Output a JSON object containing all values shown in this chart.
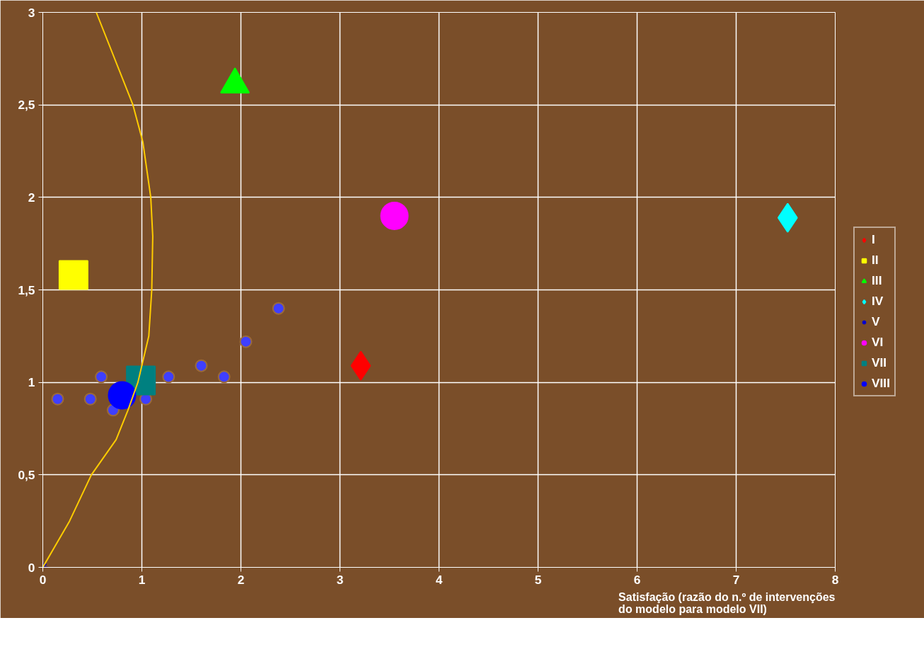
{
  "chart_data": {
    "type": "scatter",
    "xlabel": "Satisfação (razão do n.º de intervenções\ndo modelo para modelo VII)",
    "xlim": [
      0,
      8
    ],
    "xticks": [
      0,
      1,
      2,
      3,
      4,
      5,
      6,
      7,
      8
    ],
    "ylim": [
      0,
      3
    ],
    "yticks": [
      0,
      {
        "value": 0.5,
        "label": "0,5"
      },
      1,
      {
        "value": 1.5,
        "label": "1,5"
      },
      2,
      {
        "value": 2.5,
        "label": "2,5"
      },
      3
    ],
    "grid": true,
    "legend": "right",
    "series": [
      {
        "color": "#3f3fff",
        "marker": "circle",
        "x": [
          0.15,
          0.48,
          0.59,
          0.71,
          1.04,
          1.27,
          1.6,
          1.83,
          2.05,
          2.38
        ],
        "values": [
          0.91,
          0.91,
          1.03,
          0.85,
          0.91,
          1.03,
          1.09,
          1.03,
          1.22,
          1.4
        ]
      },
      {
        "name": "I",
        "color": "#ff0000",
        "marker": "diamond",
        "x": [
          3.21
        ],
        "values": [
          1.09
        ]
      },
      {
        "name": "II",
        "color": "#ffff00",
        "marker": "square",
        "x": [
          0.31
        ],
        "values": [
          1.58
        ]
      },
      {
        "name": "III",
        "color": "#00ff00",
        "marker": "triangle",
        "x": [
          1.94
        ],
        "values": [
          2.61
        ]
      },
      {
        "name": "IV",
        "color": "#00ffff",
        "marker": "diamond",
        "x": [
          7.52
        ],
        "values": [
          1.89
        ]
      },
      {
        "name": "V",
        "color": "#0000cc",
        "marker": "cross",
        "x": [
          null
        ],
        "values": [
          null
        ]
      },
      {
        "name": "VI",
        "color": "#ff00ff",
        "marker": "circle",
        "x": [
          3.55
        ],
        "values": [
          1.9
        ]
      },
      {
        "name": "VII",
        "color": "#008080",
        "marker": "square",
        "x": [
          0.99
        ],
        "values": [
          1.01
        ]
      },
      {
        "name": "VIII",
        "color": "#0000ff",
        "marker": "circle",
        "x": [
          0.8
        ],
        "values": [
          0.93
        ]
      },
      {
        "type": "line",
        "color": "#ffcc00",
        "marker": "none",
        "x": [
          0,
          0.27,
          0.49,
          0.74,
          0.86,
          0.96,
          1.07,
          1.1,
          1.11,
          1.09,
          1.01,
          0.91,
          0.54
        ],
        "values": [
          0,
          0.25,
          0.5,
          0.69,
          0.85,
          1,
          1.25,
          1.5,
          1.79,
          2,
          2.3,
          2.5,
          3
        ]
      }
    ]
  }
}
